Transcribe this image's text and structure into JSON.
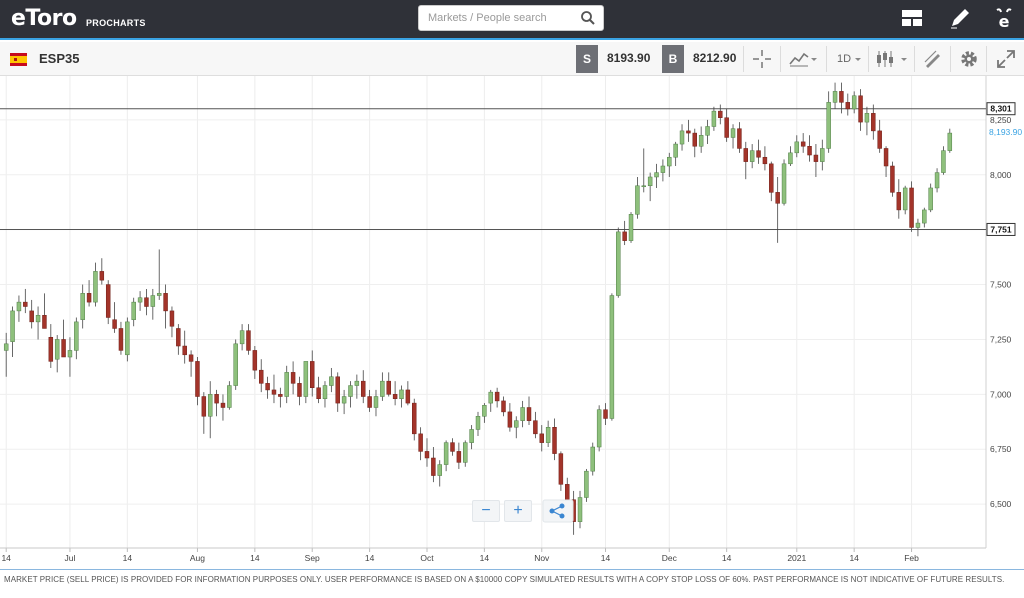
{
  "topbar": {
    "logo": "eToro",
    "logo_sub": "PROCHARTS",
    "search_placeholder": "Markets / People search",
    "icons": [
      "layout-icon",
      "edit-pencil-icon",
      "etoro-e-icon"
    ]
  },
  "instrument": {
    "symbol": "ESP35",
    "sell_label": "S",
    "sell_price": "8193.90",
    "buy_label": "B",
    "buy_price": "8212.90",
    "interval": "1D"
  },
  "zoom": {
    "minus": "−",
    "plus": "+"
  },
  "footer": {
    "disclaimer": "MARKET PRICE (SELL PRICE) IS PROVIDED FOR INFORMATION PURPOSES ONLY. USER PERFORMANCE IS BASED ON A $10000 COPY SIMULATED RESULTS WITH A COPY STOP LOSS OF 60%. PAST PERFORMANCE IS NOT INDICATIVE OF FUTURE RESULTS."
  },
  "colors": {
    "up": "#8ec07c",
    "down": "#a3342a",
    "accent": "#3aa3e3",
    "topbar": "#2f3138"
  },
  "chart_data": {
    "type": "candlestick",
    "ylim": [
      6300,
      8450
    ],
    "y_ticks": [
      6500,
      6750,
      7000,
      7250,
      7500,
      7750,
      8000,
      8250
    ],
    "y_tick_labels": [
      "6,500",
      "6,750",
      "7,000",
      "7,250",
      "7,500",
      "",
      "8,000",
      "8,250"
    ],
    "x_tick_labels": [
      "14",
      "Jul",
      "14",
      "Aug",
      "14",
      "Sep",
      "14",
      "Oct",
      "14",
      "Nov",
      "14",
      "Dec",
      "14",
      "2021",
      "14",
      "Feb"
    ],
    "horizontal_lines": [
      {
        "value": 8301,
        "label": "8,301"
      },
      {
        "value": 7751,
        "label": "7,751"
      }
    ],
    "current_price": {
      "value": 8193.9,
      "label": "8,193.90"
    },
    "candles": [
      [
        7200,
        7280,
        7080,
        7230
      ],
      [
        7240,
        7400,
        7170,
        7380
      ],
      [
        7380,
        7450,
        7330,
        7420
      ],
      [
        7420,
        7480,
        7370,
        7400
      ],
      [
        7380,
        7430,
        7300,
        7330
      ],
      [
        7330,
        7400,
        7250,
        7360
      ],
      [
        7360,
        7460,
        7300,
        7300
      ],
      [
        7260,
        7320,
        7120,
        7150
      ],
      [
        7160,
        7270,
        7100,
        7250
      ],
      [
        7250,
        7340,
        7180,
        7170
      ],
      [
        7170,
        7260,
        7080,
        7200
      ],
      [
        7200,
        7350,
        7160,
        7330
      ],
      [
        7340,
        7500,
        7300,
        7460
      ],
      [
        7460,
        7520,
        7400,
        7420
      ],
      [
        7420,
        7600,
        7400,
        7560
      ],
      [
        7560,
        7620,
        7500,
        7520
      ],
      [
        7500,
        7520,
        7320,
        7350
      ],
      [
        7340,
        7420,
        7280,
        7300
      ],
      [
        7300,
        7330,
        7180,
        7200
      ],
      [
        7180,
        7350,
        7150,
        7330
      ],
      [
        7340,
        7440,
        7310,
        7420
      ],
      [
        7420,
        7470,
        7380,
        7440
      ],
      [
        7440,
        7480,
        7360,
        7400
      ],
      [
        7400,
        7480,
        7340,
        7450
      ],
      [
        7450,
        7660,
        7430,
        7460
      ],
      [
        7460,
        7500,
        7300,
        7380
      ],
      [
        7380,
        7400,
        7260,
        7310
      ],
      [
        7300,
        7320,
        7180,
        7220
      ],
      [
        7220,
        7290,
        7140,
        7180
      ],
      [
        7180,
        7200,
        7080,
        7150
      ],
      [
        7150,
        7170,
        6950,
        6990
      ],
      [
        6990,
        7010,
        6820,
        6900
      ],
      [
        6900,
        7060,
        6800,
        7000
      ],
      [
        7000,
        7020,
        6900,
        6960
      ],
      [
        6960,
        7000,
        6880,
        6940
      ],
      [
        6940,
        7060,
        6930,
        7040
      ],
      [
        7040,
        7250,
        7020,
        7230
      ],
      [
        7230,
        7320,
        7200,
        7290
      ],
      [
        7290,
        7320,
        7180,
        7200
      ],
      [
        7200,
        7220,
        7070,
        7110
      ],
      [
        7110,
        7160,
        7010,
        7050
      ],
      [
        7050,
        7080,
        6980,
        7020
      ],
      [
        7020,
        7090,
        6960,
        7000
      ],
      [
        7000,
        7030,
        6940,
        6990
      ],
      [
        6990,
        7130,
        6960,
        7100
      ],
      [
        7100,
        7150,
        7000,
        7050
      ],
      [
        7050,
        7080,
        6950,
        6990
      ],
      [
        6990,
        7130,
        6960,
        7150
      ],
      [
        7150,
        7200,
        6990,
        7030
      ],
      [
        7030,
        7080,
        6960,
        6980
      ],
      [
        6980,
        7060,
        6940,
        7040
      ],
      [
        7040,
        7120,
        7010,
        7080
      ],
      [
        7080,
        7100,
        6920,
        6960
      ],
      [
        6960,
        7020,
        6910,
        6990
      ],
      [
        6990,
        7060,
        6940,
        7040
      ],
      [
        7040,
        7090,
        6980,
        7060
      ],
      [
        7060,
        7110,
        6960,
        6990
      ],
      [
        6990,
        7020,
        6920,
        6940
      ],
      [
        6940,
        7020,
        6900,
        6990
      ],
      [
        6990,
        7100,
        6970,
        7060
      ],
      [
        7060,
        7100,
        6990,
        7000
      ],
      [
        7000,
        7060,
        6950,
        6980
      ],
      [
        6980,
        7040,
        6940,
        7020
      ],
      [
        7020,
        7060,
        6950,
        6960
      ],
      [
        6960,
        6980,
        6790,
        6820
      ],
      [
        6820,
        6850,
        6700,
        6740
      ],
      [
        6740,
        6800,
        6670,
        6710
      ],
      [
        6710,
        6760,
        6600,
        6630
      ],
      [
        6630,
        6700,
        6580,
        6680
      ],
      [
        6680,
        6790,
        6650,
        6780
      ],
      [
        6780,
        6800,
        6720,
        6740
      ],
      [
        6740,
        6780,
        6660,
        6690
      ],
      [
        6690,
        6790,
        6670,
        6780
      ],
      [
        6780,
        6860,
        6750,
        6840
      ],
      [
        6840,
        6920,
        6810,
        6900
      ],
      [
        6900,
        6960,
        6870,
        6950
      ],
      [
        6960,
        7020,
        6920,
        7010
      ],
      [
        7010,
        7030,
        6940,
        6970
      ],
      [
        6970,
        6990,
        6900,
        6920
      ],
      [
        6920,
        6960,
        6830,
        6850
      ],
      [
        6850,
        6900,
        6800,
        6880
      ],
      [
        6880,
        6970,
        6850,
        6940
      ],
      [
        6940,
        6990,
        6860,
        6880
      ],
      [
        6880,
        6920,
        6800,
        6820
      ],
      [
        6820,
        6860,
        6740,
        6780
      ],
      [
        6780,
        6880,
        6760,
        6850
      ],
      [
        6850,
        6890,
        6700,
        6730
      ],
      [
        6730,
        6740,
        6560,
        6590
      ],
      [
        6590,
        6620,
        6490,
        6510
      ],
      [
        6520,
        6560,
        6360,
        6420
      ],
      [
        6420,
        6560,
        6390,
        6530
      ],
      [
        6530,
        6660,
        6510,
        6650
      ],
      [
        6650,
        6780,
        6630,
        6760
      ],
      [
        6760,
        6950,
        6740,
        6930
      ],
      [
        6930,
        6960,
        6860,
        6890
      ],
      [
        6890,
        7460,
        6880,
        7450
      ],
      [
        7450,
        7760,
        7440,
        7740
      ],
      [
        7740,
        7790,
        7680,
        7700
      ],
      [
        7700,
        7830,
        7690,
        7820
      ],
      [
        7820,
        7990,
        7800,
        7950
      ],
      [
        7950,
        8120,
        7920,
        7950
      ],
      [
        7950,
        8010,
        7880,
        7990
      ],
      [
        7990,
        8050,
        7940,
        8010
      ],
      [
        8010,
        8070,
        7970,
        8040
      ],
      [
        8040,
        8100,
        7990,
        8080
      ],
      [
        8080,
        8150,
        8040,
        8140
      ],
      [
        8140,
        8230,
        8110,
        8200
      ],
      [
        8200,
        8250,
        8150,
        8190
      ],
      [
        8190,
        8210,
        8080,
        8130
      ],
      [
        8130,
        8220,
        8100,
        8180
      ],
      [
        8180,
        8250,
        8140,
        8220
      ],
      [
        8220,
        8310,
        8200,
        8290
      ],
      [
        8290,
        8320,
        8230,
        8260
      ],
      [
        8260,
        8300,
        8150,
        8170
      ],
      [
        8170,
        8230,
        8120,
        8210
      ],
      [
        8210,
        8240,
        8100,
        8120
      ],
      [
        8120,
        8150,
        7980,
        8060
      ],
      [
        8060,
        8140,
        8030,
        8110
      ],
      [
        8110,
        8160,
        8050,
        8080
      ],
      [
        8080,
        8130,
        8020,
        8050
      ],
      [
        8050,
        8060,
        7880,
        7920
      ],
      [
        7920,
        7990,
        7690,
        7870
      ],
      [
        7870,
        8070,
        7860,
        8050
      ],
      [
        8050,
        8130,
        8040,
        8100
      ],
      [
        8100,
        8180,
        8080,
        8150
      ],
      [
        8150,
        8190,
        8100,
        8130
      ],
      [
        8130,
        8180,
        8060,
        8090
      ],
      [
        8090,
        8140,
        7990,
        8060
      ],
      [
        8060,
        8160,
        8020,
        8120
      ],
      [
        8120,
        8380,
        8100,
        8330
      ],
      [
        8330,
        8420,
        8300,
        8380
      ],
      [
        8380,
        8420,
        8280,
        8330
      ],
      [
        8330,
        8370,
        8270,
        8300
      ],
      [
        8300,
        8380,
        8280,
        8360
      ],
      [
        8360,
        8390,
        8200,
        8240
      ],
      [
        8240,
        8310,
        8180,
        8280
      ],
      [
        8280,
        8320,
        8160,
        8200
      ],
      [
        8200,
        8250,
        8100,
        8120
      ],
      [
        8120,
        8130,
        7990,
        8040
      ],
      [
        8040,
        8060,
        7900,
        7920
      ],
      [
        7920,
        7980,
        7800,
        7840
      ],
      [
        7840,
        7950,
        7820,
        7940
      ],
      [
        7940,
        7970,
        7740,
        7760
      ],
      [
        7760,
        7800,
        7720,
        7780
      ],
      [
        7780,
        7850,
        7760,
        7840
      ],
      [
        7840,
        7960,
        7830,
        7940
      ],
      [
        7940,
        8030,
        7920,
        8010
      ],
      [
        8010,
        8130,
        8000,
        8110
      ],
      [
        8110,
        8210,
        8100,
        8190
      ]
    ]
  }
}
